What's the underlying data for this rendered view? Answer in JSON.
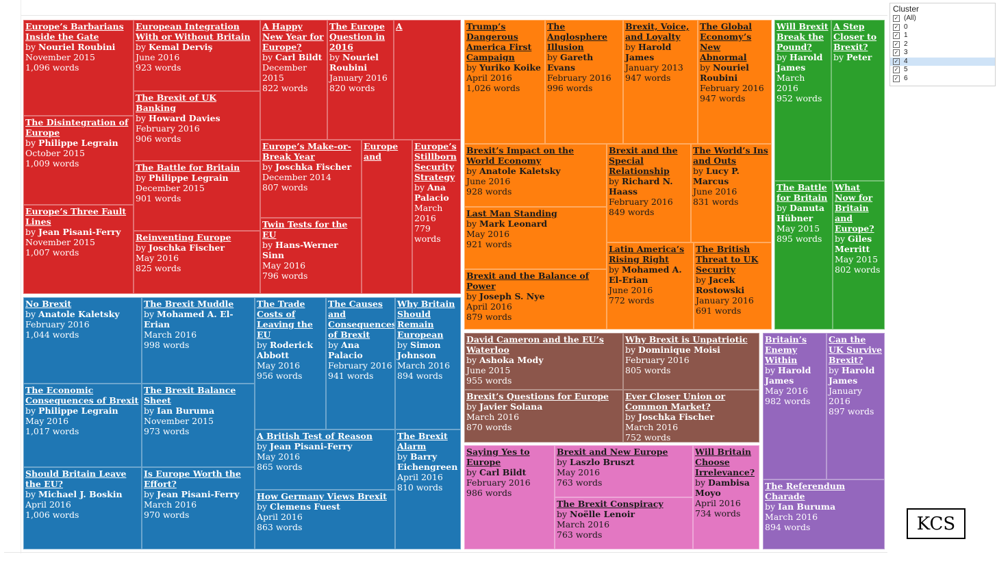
{
  "legend": {
    "title": "Cluster",
    "items": [
      "(All)",
      "0",
      "1",
      "2",
      "3",
      "4",
      "5",
      "6"
    ],
    "selected": "4"
  },
  "logo_text": "KCS",
  "chart_data": {
    "type": "treemap",
    "by_prefix": "by",
    "clusters": [
      {
        "id": "red",
        "color": "#d62728",
        "text": "light",
        "tiles": [
          {
            "title": "Europe’s Barbarians Inside the Gate",
            "author": "Nouriel Roubini",
            "date": "November 2015",
            "words": "1,096 words"
          },
          {
            "title": "The Disintegration of Europe",
            "author": "Philippe Legrain",
            "date": "October 2015",
            "words": "1,009 words"
          },
          {
            "title": "Europe’s Three Fault Lines",
            "author": "Jean Pisani-Ferry",
            "date": "November 2015",
            "words": "1,007 words"
          },
          {
            "title": "European Integration With or Without Britain",
            "author": "Kemal Derviş",
            "date": "June 2016",
            "words": "923 words"
          },
          {
            "title": "The Brexit of UK Banking",
            "author": "Howard Davies",
            "date": "February 2016",
            "words": "906 words"
          },
          {
            "title": "The Battle for Britain",
            "author": "Philippe Legrain",
            "date": "December 2015",
            "words": "901 words"
          },
          {
            "title": "Reinventing Europe",
            "author": "Joschka Fischer",
            "date": "May 2016",
            "words": "825 words"
          },
          {
            "title": "A Happy New Year for Europe?",
            "author": "Carl Bildt",
            "date": "December 2015",
            "words": "822 words"
          },
          {
            "title": "The Europe Question in 2016",
            "author": "Nouriel Roubini",
            "date": "January 2016",
            "words": "820 words"
          },
          {
            "title": "A",
            "author": "",
            "date": "",
            "words": ""
          },
          {
            "title": "Europe’s Make-or-Break Year",
            "author": "Joschka Fischer",
            "date": "December 2014",
            "words": "807 words"
          },
          {
            "title": "Twin Tests for the EU",
            "author": "Hans-Werner Sinn",
            "date": "May 2016",
            "words": "796 words"
          },
          {
            "title": "Europe and",
            "author": "",
            "date": "",
            "words": ""
          },
          {
            "title": "Europe’s Stillborn Security Strategy",
            "author": "Ana Palacio",
            "date": "March 2016",
            "words": "779 words"
          }
        ]
      },
      {
        "id": "blue",
        "color": "#1f77b4",
        "text": "light",
        "tiles": [
          {
            "title": "No Brexit",
            "author": "Anatole Kaletsky",
            "date": "February 2016",
            "words": "1,044 words"
          },
          {
            "title": "The Economic Consequences of Brexit",
            "author": "Philippe Legrain",
            "date": "May 2016",
            "words": "1,017 words"
          },
          {
            "title": "Should Britain Leave the EU?",
            "author": "Michael J. Boskin",
            "date": "April 2016",
            "words": "1,006 words"
          },
          {
            "title": "The Brexit Muddle",
            "author": "Mohamed A. El-Erian",
            "date": "March 2016",
            "words": "998 words"
          },
          {
            "title": "The Brexit Balance Sheet",
            "author": "Ian Buruma",
            "date": "November 2015",
            "words": "973 words"
          },
          {
            "title": "Is Europe Worth the Effort?",
            "author": "Jean Pisani-Ferry",
            "date": "March 2016",
            "words": "970 words"
          },
          {
            "title": "The Trade Costs of Leaving the EU",
            "author": "Roderick Abbott",
            "date": "May 2016",
            "words": "956 words"
          },
          {
            "title": "The Causes and Consequences of Brexit",
            "author": "Ana Palacio",
            "date": "February 2016",
            "words": "941 words"
          },
          {
            "title": "Why Britain Should Remain European",
            "author": "Simon Johnson",
            "date": "March 2016",
            "words": "894 words"
          },
          {
            "title": "A British Test of Reason",
            "author": "Jean Pisani-Ferry",
            "date": "May 2016",
            "words": "865 words"
          },
          {
            "title": "How Germany Views Brexit",
            "author": "Clemens Fuest",
            "date": "April 2016",
            "words": "863 words"
          },
          {
            "title": "The Brexit Alarm",
            "author": "Barry Eichengreen",
            "date": "April 2016",
            "words": "810 words"
          }
        ]
      },
      {
        "id": "orange",
        "color": "#ff7f0e",
        "text": "dark",
        "tiles": [
          {
            "title": "Trump’s Dangerous America First Campaign",
            "author": "Yuriko Koike",
            "date": "April 2016",
            "words": "1,026 words"
          },
          {
            "title": "The Anglosphere Illusion",
            "author": "Gareth Evans",
            "date": "February 2016",
            "words": "996 words"
          },
          {
            "title": "Brexit, Voice, and Loyalty",
            "author": "Harold James",
            "date": "January 2013",
            "words": "947 words"
          },
          {
            "title": "The Global Economy’s New Abnormal",
            "author": "Nouriel Roubini",
            "date": "February 2016",
            "words": "947 words"
          },
          {
            "title": "Brexit’s Impact on the World Economy",
            "author": "Anatole Kaletsky",
            "date": "June 2016",
            "words": "928 words"
          },
          {
            "title": "Last Man Standing",
            "author": "Mark Leonard",
            "date": "May 2016",
            "words": "921 words"
          },
          {
            "title": "Brexit and the Balance of Power",
            "author": "Joseph S. Nye",
            "date": "April 2016",
            "words": "879 words"
          },
          {
            "title": "Brexit and the Special Relationship",
            "author": "Richard N. Haass",
            "date": "February 2016",
            "words": "849 words"
          },
          {
            "title": "The World’s Ins and Outs",
            "author": "Lucy P. Marcus",
            "date": "June 2016",
            "words": "831 words"
          },
          {
            "title": "Latin America’s Rising Right",
            "author": "Mohamed A. El-Erian",
            "date": "June 2016",
            "words": "772 words"
          },
          {
            "title": "The British Threat to UK Security",
            "author": "Jacek Rostowski",
            "date": "January 2016",
            "words": "691 words"
          }
        ]
      },
      {
        "id": "green",
        "color": "#2ca02c",
        "text": "light",
        "tiles": [
          {
            "title": "Will Brexit Break the Pound?",
            "author": "Harold James",
            "date": "March 2016",
            "words": "952 words"
          },
          {
            "title": "A Step Closer to Brexit?",
            "author": "Peter",
            "date": "",
            "words": ""
          },
          {
            "title": "The Battle for Britain",
            "author": "Danuta Hübner",
            "date": "May 2015",
            "words": "895 words"
          },
          {
            "title": "What Now for Britain and Europe?",
            "author": "Giles Merritt",
            "date": "May 2015",
            "words": "802 words"
          }
        ]
      },
      {
        "id": "brown",
        "color": "#8c564b",
        "text": "light",
        "tiles": [
          {
            "title": "David Cameron and the EU’s Waterloo",
            "author": "Ashoka Mody",
            "date": "June 2015",
            "words": "955 words"
          },
          {
            "title": "Why Brexit is Unpatriotic",
            "author": "Dominique Moisi",
            "date": "February 2016",
            "words": "805 words"
          },
          {
            "title": "Brexit’s Questions for Europe",
            "author": "Javier Solana",
            "date": "March 2016",
            "words": "870 words"
          },
          {
            "title": "Ever Closer Union or Common Market?",
            "author": "Joschka Fischer",
            "date": "March 2016",
            "words": "752 words"
          }
        ]
      },
      {
        "id": "pink",
        "color": "#e377c2",
        "text": "dark",
        "tiles": [
          {
            "title": "Saying Yes to Europe",
            "author": "Carl Bildt",
            "date": "February 2016",
            "words": "986 words"
          },
          {
            "title": "Brexit and New Europe",
            "author": "Laszlo Bruszt",
            "date": "May 2016",
            "words": "763 words"
          },
          {
            "title": "The Brexit Conspiracy",
            "author": "Noëlle Lenoir",
            "date": "March 2016",
            "words": "763 words"
          },
          {
            "title": "Will Britain Choose Irrelevance?",
            "author": "Dambisa Moyo",
            "date": "April 2016",
            "words": "734 words"
          }
        ]
      },
      {
        "id": "purple",
        "color": "#9467bd",
        "text": "light",
        "tiles": [
          {
            "title": "Britain’s Enemy Within",
            "author": "Harold James",
            "date": "May 2016",
            "words": "982 words"
          },
          {
            "title": "Can the UK Survive Brexit?",
            "author": "Harold James",
            "date": "January 2016",
            "words": "897 words"
          },
          {
            "title": "The Referendum Charade",
            "author": "Ian Buruma",
            "date": "March 2016",
            "words": "894 words"
          }
        ]
      }
    ]
  }
}
